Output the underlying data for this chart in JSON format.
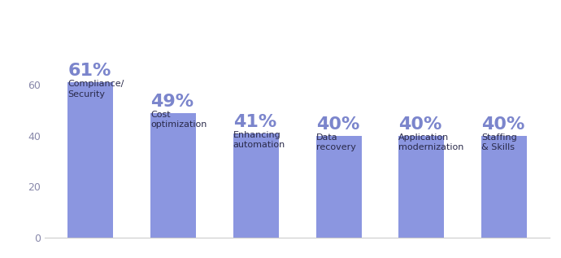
{
  "values": [
    61,
    49,
    41,
    40,
    40,
    40
  ],
  "percentages": [
    "61%",
    "49%",
    "41%",
    "40%",
    "40%",
    "40%"
  ],
  "labels": [
    "Compliance/\nSecurity",
    "Cost\noptimization",
    "Enhancing\nautomation",
    "Data\nrecovery",
    "Application\nmodernization",
    "Staffing\n& Skills"
  ],
  "bar_color": "#8b96e0",
  "background_color": "#ffffff",
  "ylim": [
    0,
    65
  ],
  "yticks": [
    0,
    20,
    40,
    60
  ],
  "pct_fontsize": 16,
  "label_fontsize": 8.0,
  "tick_fontsize": 9,
  "pct_color": "#7b85cc",
  "label_color": "#2a2a4a",
  "tick_color": "#8888aa",
  "bar_width": 0.55
}
